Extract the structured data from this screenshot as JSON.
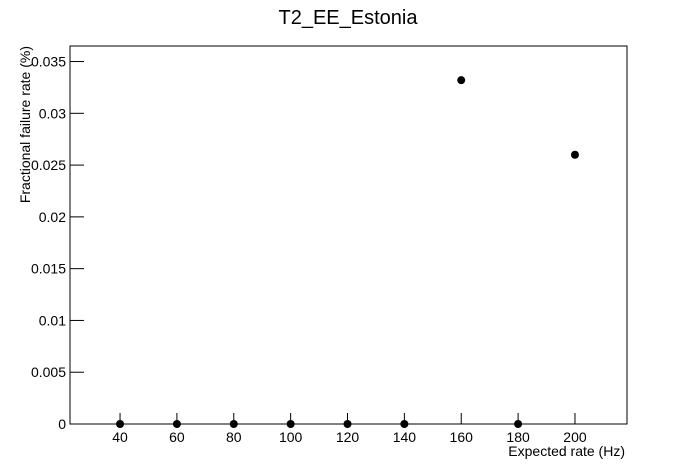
{
  "chart_data": {
    "type": "scatter",
    "title": "T2_EE_Estonia",
    "x_label": "Expected rate (Hz)",
    "y_label": "Fractional failure rate (%)",
    "x": [
      40,
      60,
      80,
      100,
      120,
      140,
      160,
      180,
      200
    ],
    "values": [
      0,
      0,
      0,
      0,
      0,
      0,
      0.0332,
      0,
      0.026
    ],
    "color": "#000000",
    "xlim": [
      22.4,
      218.3
    ],
    "xticks": [
      40,
      60,
      80,
      100,
      120,
      140,
      160,
      180,
      200
    ],
    "ylim": [
      0,
      0.0365
    ],
    "yticks": [
      0,
      0.005,
      0.01,
      0.015,
      0.02,
      0.025,
      0.03,
      0.035
    ]
  }
}
